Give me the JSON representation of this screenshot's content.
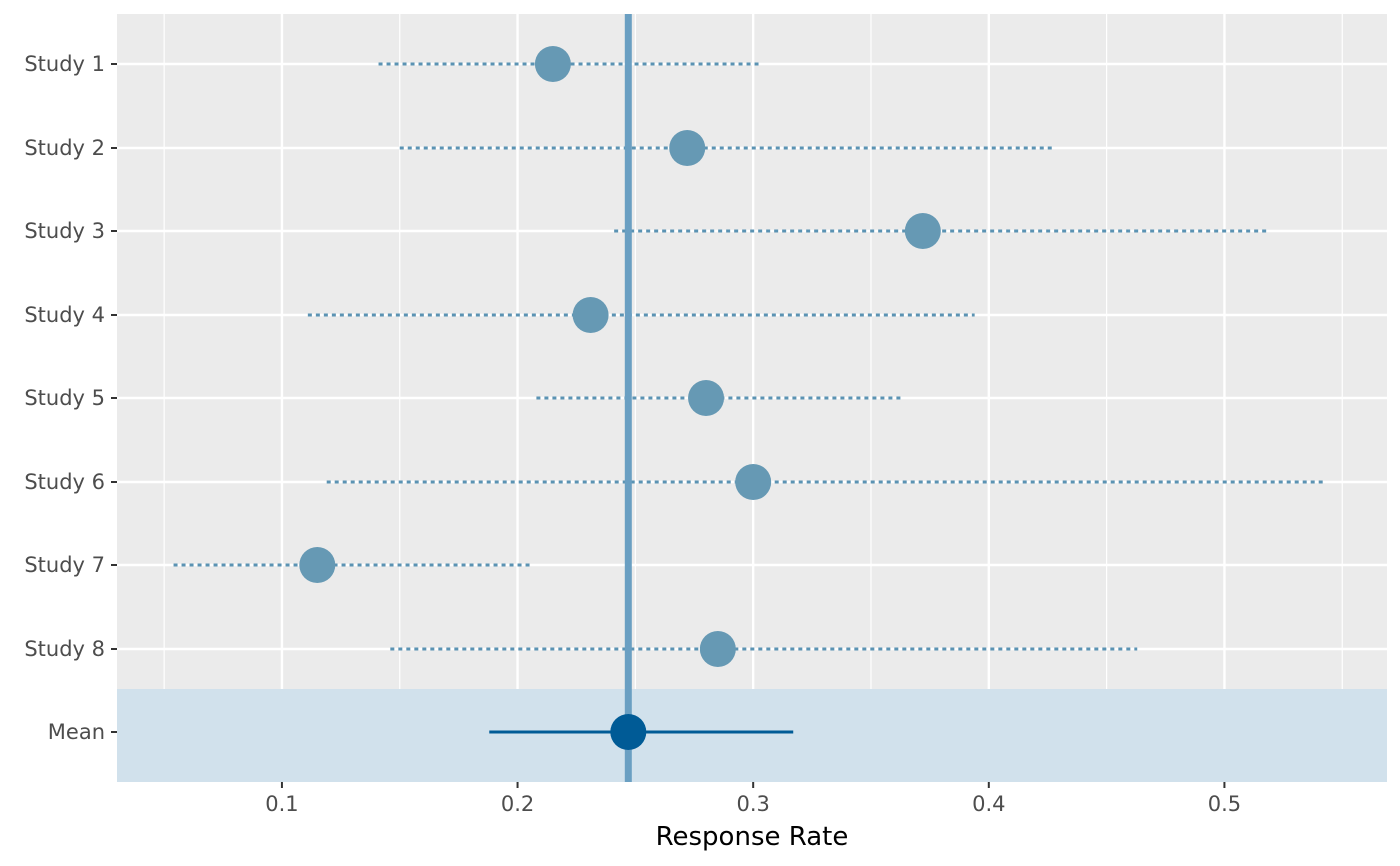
{
  "chart_data": {
    "type": "forest",
    "xlabel": "Response Rate",
    "xlim": [
      0.03,
      0.569
    ],
    "x_ticks": [
      0.1,
      0.2,
      0.3,
      0.4,
      0.5
    ],
    "x_tick_labels": [
      "0.1",
      "0.2",
      "0.3",
      "0.4",
      "0.5"
    ],
    "x_minor_ticks": [
      0.05,
      0.15,
      0.25,
      0.35,
      0.45,
      0.55
    ],
    "studies": [
      {
        "label": "Study 1",
        "estimate": 0.215,
        "lower": 0.141,
        "upper": 0.303
      },
      {
        "label": "Study 2",
        "estimate": 0.272,
        "lower": 0.15,
        "upper": 0.428
      },
      {
        "label": "Study 3",
        "estimate": 0.372,
        "lower": 0.241,
        "upper": 0.519
      },
      {
        "label": "Study 4",
        "estimate": 0.231,
        "lower": 0.111,
        "upper": 0.394
      },
      {
        "label": "Study 5",
        "estimate": 0.28,
        "lower": 0.208,
        "upper": 0.363
      },
      {
        "label": "Study 6",
        "estimate": 0.3,
        "lower": 0.119,
        "upper": 0.542
      },
      {
        "label": "Study 7",
        "estimate": 0.115,
        "lower": 0.054,
        "upper": 0.206
      },
      {
        "label": "Study 8",
        "estimate": 0.285,
        "lower": 0.146,
        "upper": 0.463
      }
    ],
    "mean": {
      "label": "Mean",
      "estimate": 0.247,
      "lower": 0.188,
      "upper": 0.317
    },
    "reference_line": 0.247,
    "colors": {
      "panel_background": "#ebebeb",
      "grid": "#ffffff",
      "study_point": "#6699b4",
      "study_interval": "#5b93b3",
      "mean_band": "#d1e1ec",
      "mean_point": "#005b96",
      "reference_line": "#6a9fc2"
    }
  }
}
